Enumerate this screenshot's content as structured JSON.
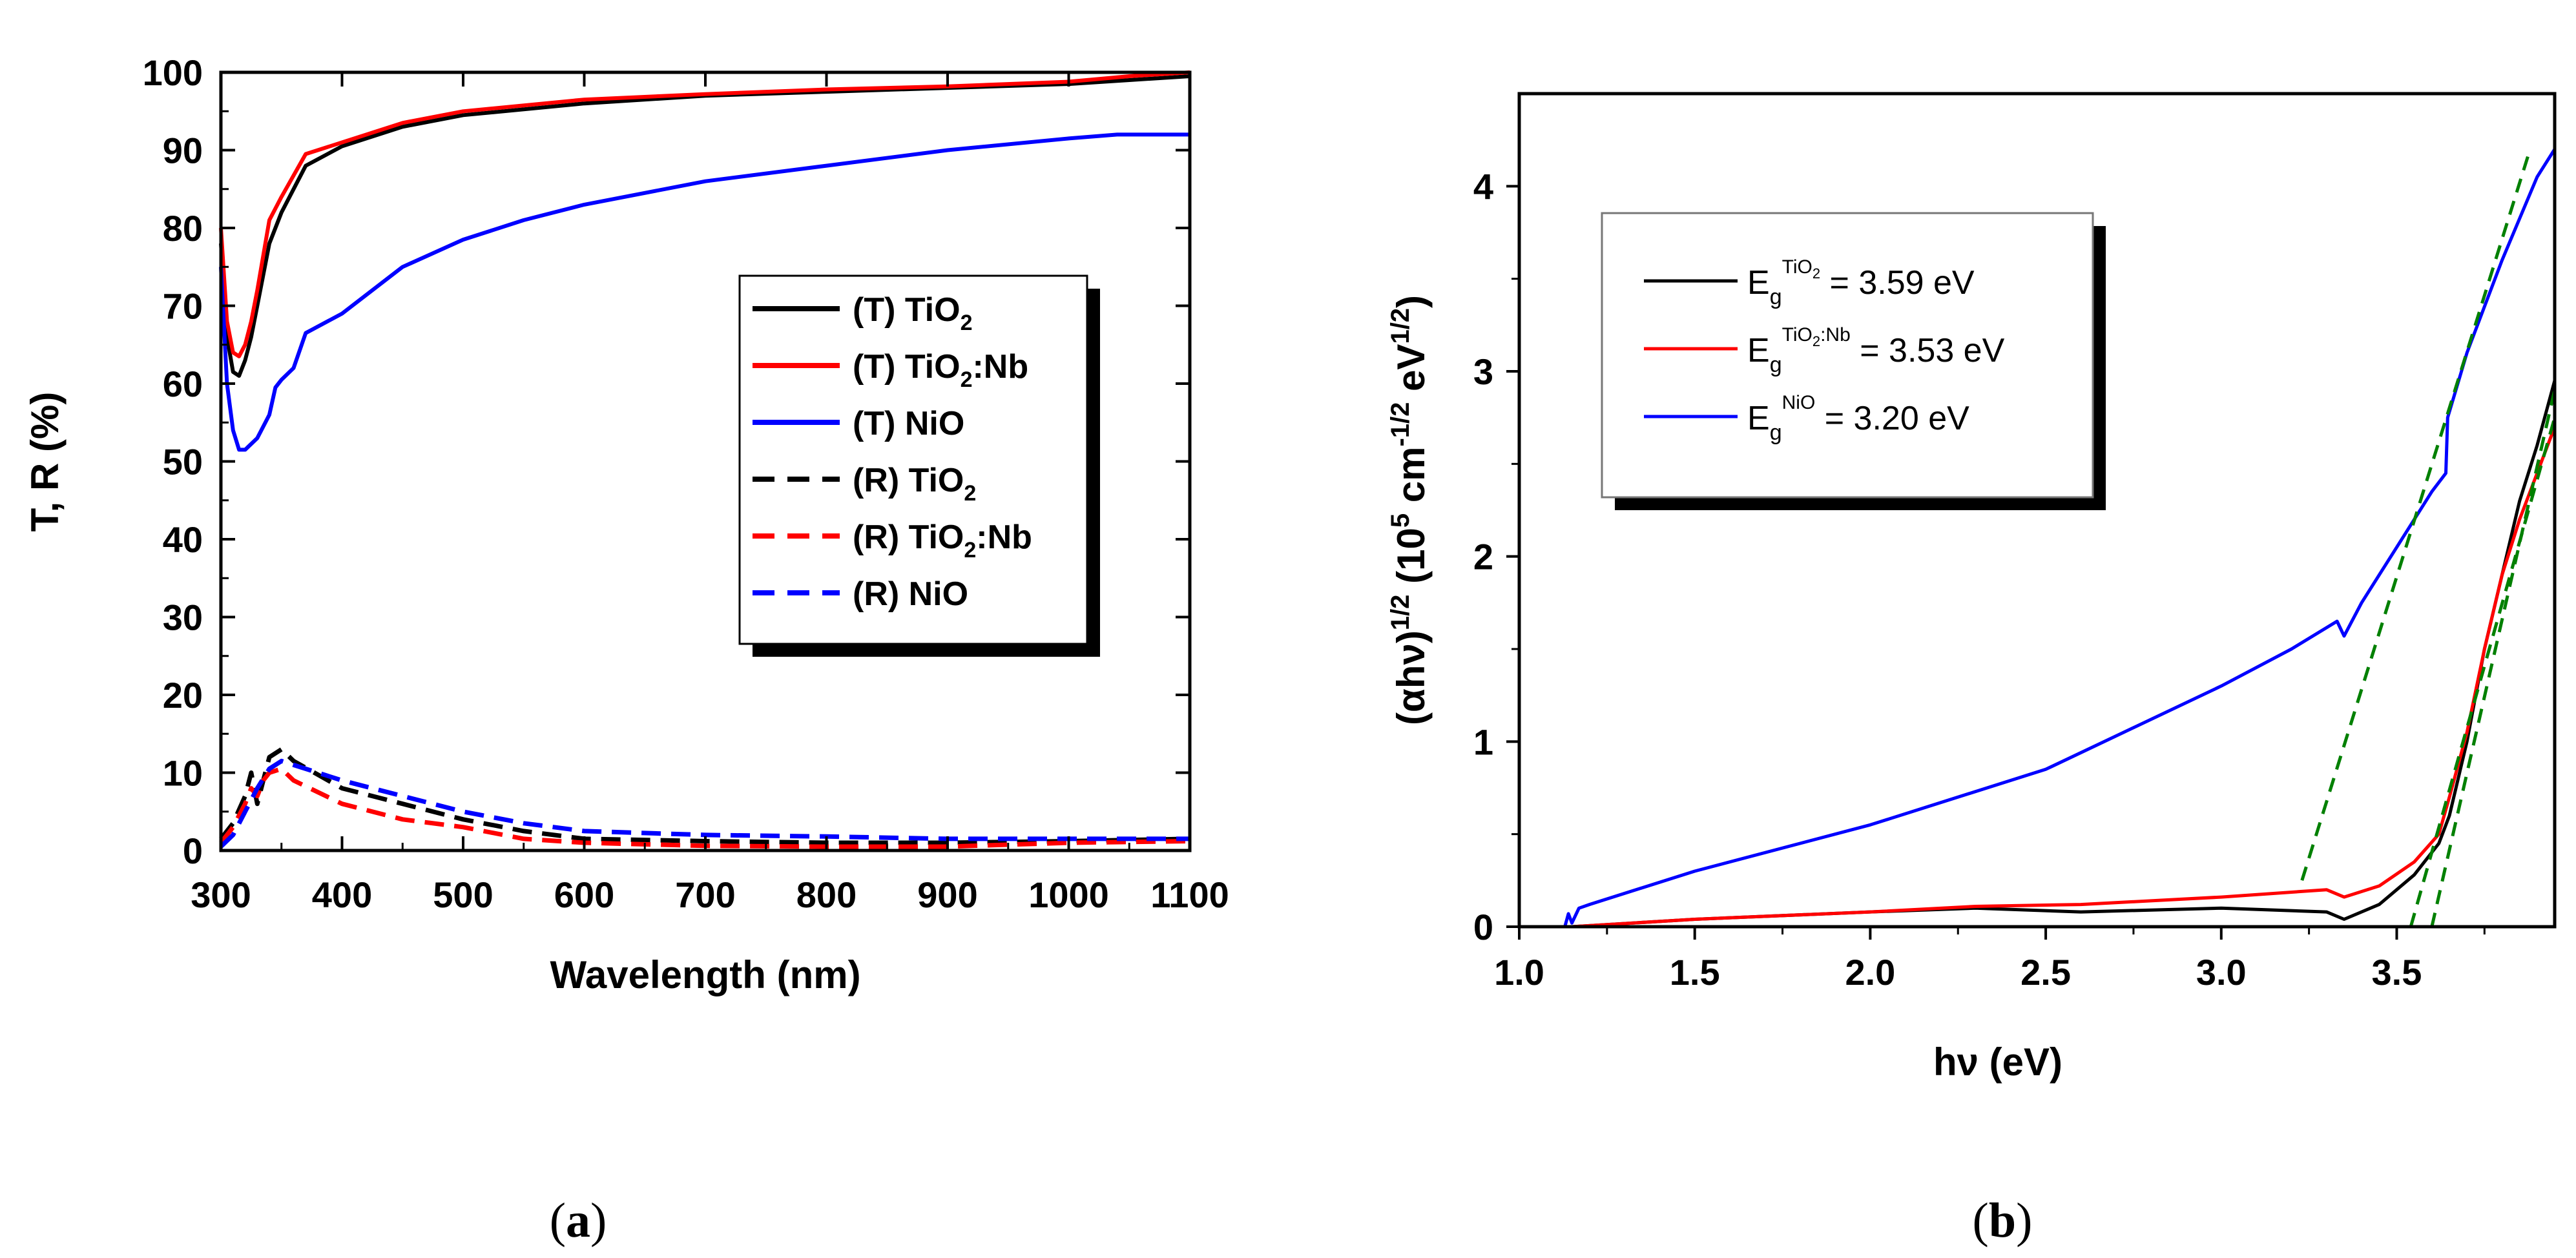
{
  "chart_data": [
    {
      "type": "line",
      "panel_label": "a",
      "xlabel": "Wavelength (nm)",
      "ylabel": "T, R (%)",
      "xlim": [
        300,
        1100
      ],
      "ylim": [
        0,
        100
      ],
      "xticks": [
        300,
        400,
        500,
        600,
        700,
        800,
        900,
        1000,
        1100
      ],
      "yticks": [
        0,
        10,
        20,
        30,
        40,
        50,
        60,
        70,
        80,
        90,
        100
      ],
      "legend_position": "center-right",
      "series": [
        {
          "name": "(T) TiO2",
          "label_parts": [
            "(T) TiO",
            "2",
            ""
          ],
          "color": "#000000",
          "dashed": false,
          "x": [
            300,
            305,
            310,
            315,
            320,
            325,
            330,
            340,
            350,
            370,
            400,
            450,
            500,
            600,
            700,
            800,
            900,
            1000,
            1050,
            1100
          ],
          "y": [
            78,
            66,
            61.5,
            61,
            63,
            66,
            70,
            78,
            82,
            88,
            90.5,
            93,
            94.5,
            96,
            97,
            97.5,
            98,
            98.5,
            99,
            99.5
          ]
        },
        {
          "name": "(T) TiO2:Nb",
          "label_parts": [
            "(T) TiO",
            "2",
            ":Nb"
          ],
          "color": "#ff0000",
          "dashed": false,
          "x": [
            300,
            305,
            310,
            315,
            320,
            325,
            330,
            340,
            350,
            370,
            400,
            450,
            500,
            600,
            700,
            800,
            900,
            1000,
            1050,
            1100
          ],
          "y": [
            80,
            68,
            64,
            63.5,
            65,
            68,
            72,
            81,
            84,
            89.5,
            91,
            93.5,
            95,
            96.5,
            97.2,
            97.8,
            98.2,
            98.8,
            99.5,
            100
          ]
        },
        {
          "name": "(T) NiO",
          "label_parts": [
            "(T) NiO",
            "",
            ""
          ],
          "color": "#0000ff",
          "dashed": false,
          "x": [
            300,
            305,
            310,
            315,
            320,
            330,
            340,
            345,
            350,
            360,
            370,
            400,
            450,
            500,
            550,
            600,
            700,
            800,
            900,
            1000,
            1040,
            1100
          ],
          "y": [
            75,
            60,
            54,
            51.5,
            51.5,
            53,
            56,
            59.5,
            60.5,
            62,
            66.5,
            69,
            75,
            78.5,
            81,
            83,
            86,
            88,
            90,
            91.5,
            92,
            92
          ]
        },
        {
          "name": "(R) TiO2",
          "label_parts": [
            "(R) TiO",
            "2",
            ""
          ],
          "color": "#000000",
          "dashed": true,
          "x": [
            300,
            310,
            320,
            325,
            330,
            335,
            340,
            350,
            360,
            400,
            450,
            500,
            550,
            600,
            700,
            800,
            900,
            1000,
            1100
          ],
          "y": [
            1.5,
            3.5,
            7,
            10,
            6,
            9,
            12,
            13,
            11.5,
            8,
            6,
            4,
            2.5,
            1.5,
            1.2,
            1,
            1,
            1.2,
            1.5
          ]
        },
        {
          "name": "(R) TiO2:Nb",
          "label_parts": [
            "(R) TiO",
            "2",
            ":Nb"
          ],
          "color": "#ff0000",
          "dashed": true,
          "x": [
            300,
            310,
            320,
            325,
            330,
            335,
            340,
            350,
            360,
            400,
            450,
            500,
            550,
            600,
            700,
            800,
            900,
            1000,
            1100
          ],
          "y": [
            1,
            3,
            6,
            8,
            7,
            9,
            10,
            10.5,
            9,
            6,
            4,
            3,
            1.5,
            1,
            0.6,
            0.5,
            0.5,
            1,
            1.2
          ]
        },
        {
          "name": "(R) NiO",
          "label_parts": [
            "(R) NiO",
            "",
            ""
          ],
          "color": "#0000ff",
          "dashed": true,
          "x": [
            300,
            310,
            320,
            330,
            340,
            350,
            360,
            400,
            450,
            500,
            550,
            600,
            700,
            800,
            900,
            1000,
            1100
          ],
          "y": [
            0.5,
            2,
            5,
            8,
            10.5,
            11.5,
            11,
            9,
            7,
            5,
            3.5,
            2.5,
            2,
            1.8,
            1.5,
            1.5,
            1.5
          ]
        }
      ]
    },
    {
      "type": "line",
      "panel_label": "b",
      "xlabel": "hν (eV)",
      "ylabel": "(αhν)1/2 (105 cm-1/2 eV1/2)",
      "ylabel_parts": [
        "(αhν)",
        "1/2",
        " (10",
        "5",
        " cm",
        "-1/2",
        " eV",
        "1/2",
        ")"
      ],
      "xlim": [
        1.0,
        3.95
      ],
      "ylim": [
        0,
        4.5
      ],
      "xticks": [
        1.0,
        1.5,
        2.0,
        2.5,
        3.0,
        3.5
      ],
      "xtick_labels": [
        "1.0",
        "1.5",
        "2.0",
        "2.5",
        "3.0",
        "3.5"
      ],
      "yticks": [
        0,
        1,
        2,
        3,
        4
      ],
      "legend_position": "top-left",
      "series": [
        {
          "name": "Eg TiO2 = 3.59 eV",
          "legend_parts": [
            "E",
            "g",
            "TiO",
            "2",
            " = 3.59 eV"
          ],
          "color": "#000000",
          "dashed": false,
          "x": [
            1.15,
            1.5,
            2.0,
            2.3,
            2.6,
            3.0,
            3.3,
            3.35,
            3.45,
            3.55,
            3.62,
            3.65,
            3.7,
            3.75,
            3.8,
            3.85,
            3.9,
            3.95
          ],
          "y": [
            0.0,
            0.04,
            0.08,
            0.1,
            0.08,
            0.1,
            0.08,
            0.04,
            0.12,
            0.28,
            0.45,
            0.6,
            1.0,
            1.5,
            1.9,
            2.3,
            2.6,
            2.95
          ]
        },
        {
          "name": "Eg TiO2:Nb = 3.53 eV",
          "legend_parts": [
            "E",
            "g",
            "TiO",
            "2",
            ":Nb",
            " = 3.53 eV"
          ],
          "color": "#ff0000",
          "dashed": false,
          "x": [
            1.15,
            1.5,
            2.0,
            2.3,
            2.6,
            3.0,
            3.3,
            3.35,
            3.45,
            3.55,
            3.62,
            3.65,
            3.7,
            3.75,
            3.8,
            3.85,
            3.9,
            3.95
          ],
          "y": [
            0.0,
            0.04,
            0.08,
            0.11,
            0.12,
            0.16,
            0.2,
            0.16,
            0.22,
            0.35,
            0.5,
            0.7,
            1.05,
            1.5,
            1.9,
            2.2,
            2.45,
            2.7
          ]
        },
        {
          "name": "Eg NiO = 3.20 eV",
          "legend_parts": [
            "E",
            "g",
            "NiO",
            "",
            " = 3.20 eV"
          ],
          "color": "#0000ff",
          "dashed": false,
          "x": [
            1.13,
            1.14,
            1.15,
            1.17,
            1.2,
            1.5,
            2.0,
            2.5,
            3.0,
            3.2,
            3.33,
            3.35,
            3.4,
            3.5,
            3.6,
            3.64,
            3.645,
            3.7,
            3.8,
            3.9,
            3.95
          ],
          "y": [
            0.0,
            0.07,
            0.02,
            0.1,
            0.12,
            0.3,
            0.55,
            0.85,
            1.3,
            1.5,
            1.65,
            1.57,
            1.75,
            2.05,
            2.35,
            2.45,
            2.75,
            3.1,
            3.6,
            4.05,
            4.2
          ]
        },
        {
          "name": "fit NiO",
          "color": "#008000",
          "dashed": true,
          "fit": true,
          "x": [
            3.23,
            3.88
          ],
          "y": [
            0.25,
            4.2
          ]
        },
        {
          "name": "fit TiO2:Nb",
          "color": "#008000",
          "dashed": true,
          "fit": true,
          "x": [
            3.54,
            3.95
          ],
          "y": [
            0.0,
            2.75
          ]
        },
        {
          "name": "fit TiO2",
          "color": "#008000",
          "dashed": true,
          "fit": true,
          "x": [
            3.6,
            3.95
          ],
          "y": [
            0.0,
            2.9
          ]
        }
      ]
    }
  ],
  "captions": {
    "a": "a",
    "b": "b"
  }
}
